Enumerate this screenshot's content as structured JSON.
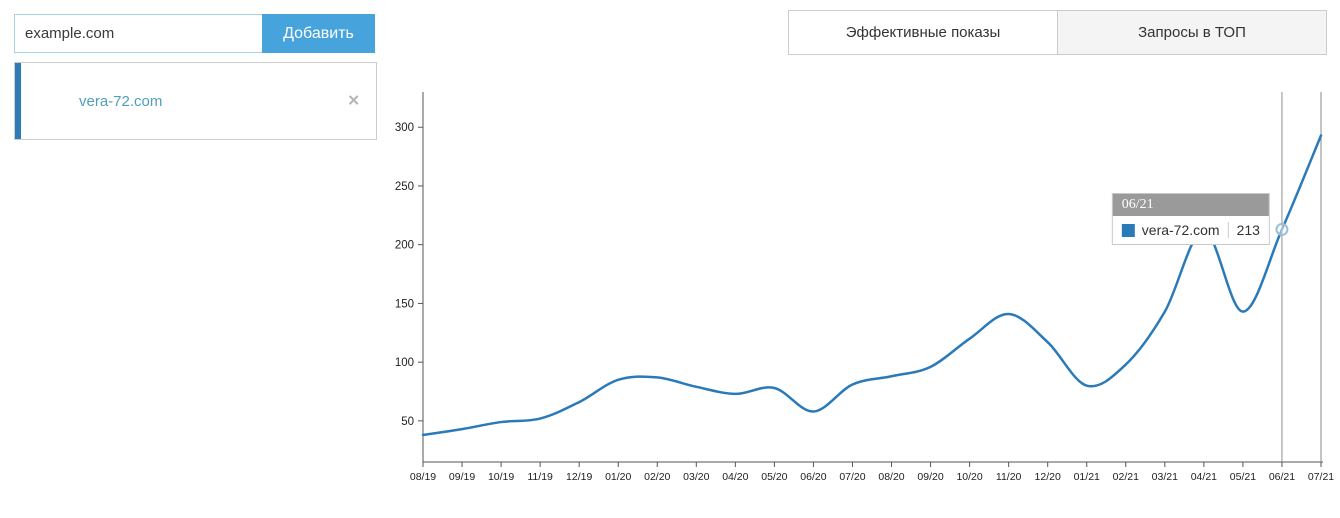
{
  "add_domain": {
    "input_placeholder": "example.com",
    "button_label": "Добавить"
  },
  "domain_list": [
    {
      "name": "vera-72.com",
      "remove_icon": "✕",
      "active": true
    }
  ],
  "tabs": [
    {
      "label": "Эффективные показы",
      "active": true
    },
    {
      "label": "Запросы в ТОП",
      "active": false
    }
  ],
  "tooltip": {
    "title": "06/21",
    "series_name": "vera-72.com",
    "value": "213"
  },
  "colors": {
    "accent_blue": "#47a3dc",
    "active_bar_blue": "#2d7cb7",
    "domain_link": "#4f9fba",
    "line_blue": "#2a7ab9",
    "tooltip_header_bg": "#9a9a9a",
    "border_gray": "#cccccc",
    "input_border": "#a8cfe8",
    "axis_color": "#555555",
    "cursor_gray": "#909090"
  },
  "chart_data": {
    "type": "line",
    "title": "",
    "xlabel": "",
    "ylabel": "",
    "grid": false,
    "legend_position": "none",
    "categories": [
      "08/19",
      "09/19",
      "10/19",
      "11/19",
      "12/19",
      "01/20",
      "02/20",
      "03/20",
      "04/20",
      "05/20",
      "06/20",
      "07/20",
      "08/20",
      "09/20",
      "10/20",
      "11/20",
      "12/20",
      "01/21",
      "02/21",
      "03/21",
      "04/21",
      "05/21",
      "06/21",
      "07/21"
    ],
    "series": [
      {
        "name": "vera-72.com",
        "values": [
          38,
          43,
          49,
          52,
          66,
          85,
          87,
          79,
          73,
          78,
          58,
          81,
          88,
          96,
          120,
          141,
          117,
          80,
          98,
          143,
          212,
          143,
          213,
          293
        ]
      }
    ],
    "yticks": [
      50,
      100,
      150,
      200,
      250,
      300
    ],
    "ylim": [
      15,
      330
    ],
    "hover": {
      "index": 22,
      "value": 213
    }
  }
}
